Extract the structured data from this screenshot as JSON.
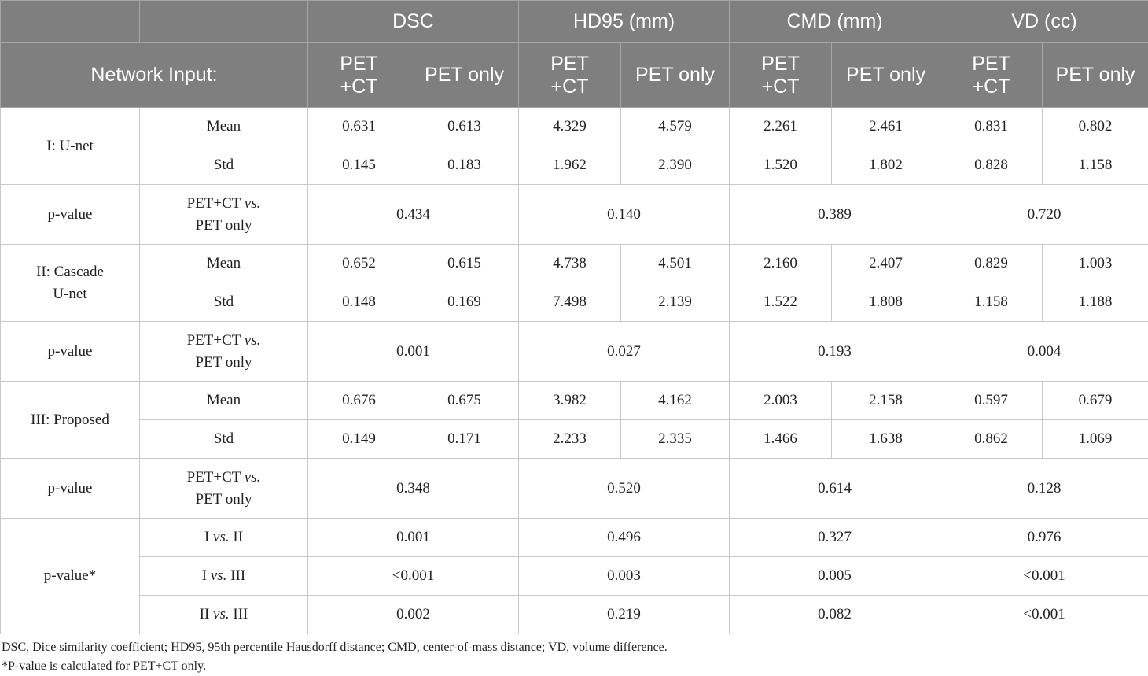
{
  "header": {
    "metrics": [
      "DSC",
      "HD95 (mm)",
      "CMD (mm)",
      "VD (cc)"
    ],
    "network_input_label": "Network Input:",
    "input_a_line1": "PET",
    "input_a_line2": "+CT",
    "input_b": "PET only"
  },
  "models": [
    {
      "name": "I: U-net",
      "mean_label": "Mean",
      "std_label": "Std",
      "mean": [
        "0.631",
        "0.613",
        "4.329",
        "4.579",
        "2.261",
        "2.461",
        "0.831",
        "0.802"
      ],
      "std": [
        "0.145",
        "0.183",
        "1.962",
        "2.390",
        "1.520",
        "1.802",
        "0.828",
        "1.158"
      ],
      "pvalue_label": "p-value",
      "comparison_line1": "PET+CT",
      "comparison_vs": "vs.",
      "comparison_line2": "PET only",
      "pvalues": [
        "0.434",
        "0.140",
        "0.389",
        "0.720"
      ]
    },
    {
      "name_line1": "II: Cascade",
      "name_line2": "U-net",
      "mean_label": "Mean",
      "std_label": "Std",
      "mean": [
        "0.652",
        "0.615",
        "4.738",
        "4.501",
        "2.160",
        "2.407",
        "0.829",
        "1.003"
      ],
      "std": [
        "0.148",
        "0.169",
        "7.498",
        "2.139",
        "1.522",
        "1.808",
        "1.158",
        "1.188"
      ],
      "pvalue_label": "p-value",
      "comparison_line1": "PET+CT",
      "comparison_vs": "vs.",
      "comparison_line2": "PET only",
      "pvalues": [
        "0.001",
        "0.027",
        "0.193",
        "0.004"
      ]
    },
    {
      "name": "III: Proposed",
      "mean_label": "Mean",
      "std_label": "Std",
      "mean": [
        "0.676",
        "0.675",
        "3.982",
        "4.162",
        "2.003",
        "2.158",
        "0.597",
        "0.679"
      ],
      "std": [
        "0.149",
        "0.171",
        "2.233",
        "2.335",
        "1.466",
        "1.638",
        "0.862",
        "1.069"
      ],
      "pvalue_label": "p-value",
      "comparison_line1": "PET+CT",
      "comparison_vs": "vs.",
      "comparison_line2": "PET only",
      "pvalues": [
        "0.348",
        "0.520",
        "0.614",
        "0.128"
      ]
    }
  ],
  "pairwise": {
    "label": "p-value*",
    "rows": [
      {
        "a": "I",
        "vs": "vs.",
        "b": "II",
        "values": [
          "0.001",
          "0.496",
          "0.327",
          "0.976"
        ]
      },
      {
        "a": "I",
        "vs": "vs.",
        "b": "III",
        "values": [
          "<0.001",
          "0.003",
          "0.005",
          "<0.001"
        ]
      },
      {
        "a": "II",
        "vs": "vs.",
        "b": "III",
        "values": [
          "0.002",
          "0.219",
          "0.082",
          "<0.001"
        ]
      }
    ]
  },
  "footnotes": [
    "DSC, Dice similarity coefficient; HD95, 95th percentile Hausdorff distance; CMD, center-of-mass distance; VD, volume difference.",
    "*P-value is calculated for PET+CT only."
  ]
}
